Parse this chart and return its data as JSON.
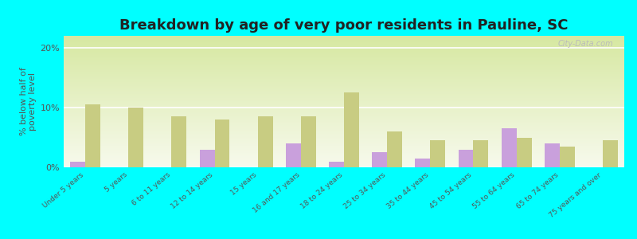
{
  "title": "Breakdown by age of very poor residents in Pauline, SC",
  "ylabel": "% below half of\npoverty level",
  "categories": [
    "Under 5 years",
    "5 years",
    "6 to 11 years",
    "12 to 14 years",
    "15 years",
    "16 and 17 years",
    "18 to 24 years",
    "25 to 34 years",
    "35 to 44 years",
    "45 to 54 years",
    "55 to 64 years",
    "65 to 74 years",
    "75 years and over"
  ],
  "pauline": [
    1.0,
    0.0,
    0.0,
    3.0,
    0.0,
    4.0,
    1.0,
    2.5,
    1.5,
    3.0,
    6.5,
    4.0,
    0.0
  ],
  "south_carolina": [
    10.5,
    10.0,
    8.5,
    8.0,
    8.5,
    8.5,
    12.5,
    6.0,
    4.5,
    4.5,
    5.0,
    3.5,
    4.5
  ],
  "pauline_color": "#c9a0dc",
  "sc_color": "#c8cc82",
  "background_outer": "#00ffff",
  "ylim": [
    0,
    22
  ],
  "yticks": [
    0,
    10,
    20
  ],
  "ytick_labels": [
    "0%",
    "10%",
    "20%"
  ],
  "bar_width": 0.35,
  "title_fontsize": 13,
  "ylabel_fontsize": 8
}
